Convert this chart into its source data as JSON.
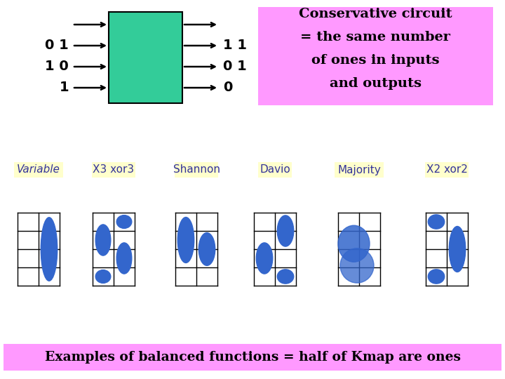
{
  "bg_color": "#ffffff",
  "pink_color": "#ff99ff",
  "teal_color": "#33cc99",
  "blue_color": "#3366cc",
  "yellow_color": "#ffffcc",
  "text_color_dark_blue": "#333399",
  "title_line1": "Conservative circuit",
  "title_line2": "= the same number",
  "title_line3": "of ones in inputs",
  "title_line4": "and outputs",
  "bottom_text": "Examples of balanced functions = half of Kmap are ones",
  "labels": [
    "Variable",
    "X3 xor3",
    "Shannon",
    "Davio",
    "Majority",
    "X2 xor2"
  ],
  "input_labels": [
    "0 1",
    "1 0",
    "1"
  ],
  "output_labels": [
    "1 1",
    "0 1",
    "0"
  ]
}
